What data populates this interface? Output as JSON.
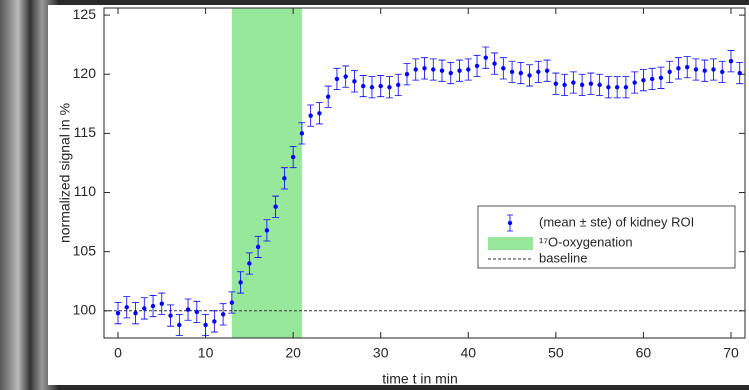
{
  "chart_data": {
    "type": "errorbar",
    "xlabel": "time t in min",
    "ylabel": "normalized signal in %",
    "x": [
      0,
      1,
      2,
      3,
      4,
      5,
      6,
      7,
      8,
      9,
      10,
      11,
      12,
      13,
      14,
      15,
      16,
      17,
      18,
      19,
      20,
      21,
      22,
      23,
      24,
      25,
      26,
      27,
      28,
      29,
      30,
      31,
      32,
      33,
      34,
      35,
      36,
      37,
      38,
      39,
      40,
      41,
      42,
      43,
      44,
      45,
      46,
      47,
      48,
      49,
      50,
      51,
      52,
      53,
      54,
      55,
      56,
      57,
      58,
      59,
      60,
      61,
      62,
      63,
      64,
      65,
      66,
      67,
      68,
      69,
      70,
      71
    ],
    "series": [
      {
        "name": "(mean ± ste) of kidney ROI",
        "color": "#0000ff",
        "values": [
          99.8,
          100.3,
          99.8,
          100.2,
          100.4,
          100.6,
          99.6,
          98.8,
          100.1,
          99.9,
          98.8,
          99.1,
          99.7,
          100.7,
          102.4,
          104.0,
          105.4,
          106.8,
          108.8,
          111.2,
          113.0,
          115.0,
          116.5,
          116.7,
          118.1,
          119.6,
          119.8,
          119.4,
          119.0,
          118.9,
          119.0,
          118.9,
          119.1,
          120.0,
          120.4,
          120.5,
          120.4,
          120.3,
          120.1,
          120.3,
          120.4,
          120.7,
          121.4,
          120.9,
          120.5,
          120.2,
          120.1,
          119.9,
          120.2,
          120.3,
          119.2,
          119.1,
          119.3,
          119.1,
          119.2,
          119.1,
          118.9,
          118.9,
          118.9,
          119.3,
          119.5,
          119.6,
          119.7,
          120.2,
          120.5,
          120.6,
          120.4,
          120.3,
          120.4,
          120.2,
          121.1,
          120.1
        ],
        "errors": [
          0.9,
          0.9,
          0.9,
          0.9,
          0.9,
          0.9,
          0.9,
          0.9,
          0.9,
          0.9,
          0.9,
          0.9,
          0.9,
          0.9,
          0.9,
          0.9,
          0.9,
          0.9,
          0.9,
          0.9,
          0.9,
          0.9,
          0.9,
          0.9,
          0.9,
          0.9,
          0.9,
          0.9,
          0.9,
          0.9,
          0.9,
          0.9,
          0.9,
          0.9,
          0.9,
          0.9,
          0.9,
          0.9,
          0.9,
          0.9,
          0.9,
          0.9,
          0.9,
          0.9,
          0.9,
          0.9,
          0.9,
          0.9,
          0.9,
          0.9,
          0.9,
          0.9,
          0.9,
          0.9,
          0.9,
          0.9,
          0.9,
          0.9,
          0.9,
          0.9,
          0.9,
          0.9,
          0.9,
          0.9,
          0.9,
          0.9,
          0.9,
          0.9,
          0.9,
          0.9,
          0.9,
          0.9
        ]
      }
    ],
    "band": {
      "name": "¹⁷O-oxygenation",
      "x": [
        13,
        21
      ],
      "color": "#98e89c"
    },
    "baseline": {
      "name": "baseline",
      "value": 100
    },
    "xlim": [
      -1.6,
      71.6
    ],
    "ylim": [
      97.7,
      125.6
    ],
    "xticks": [
      0,
      10,
      20,
      30,
      40,
      50,
      60,
      70
    ],
    "yticks": [
      100,
      105,
      110,
      115,
      120,
      125
    ]
  }
}
